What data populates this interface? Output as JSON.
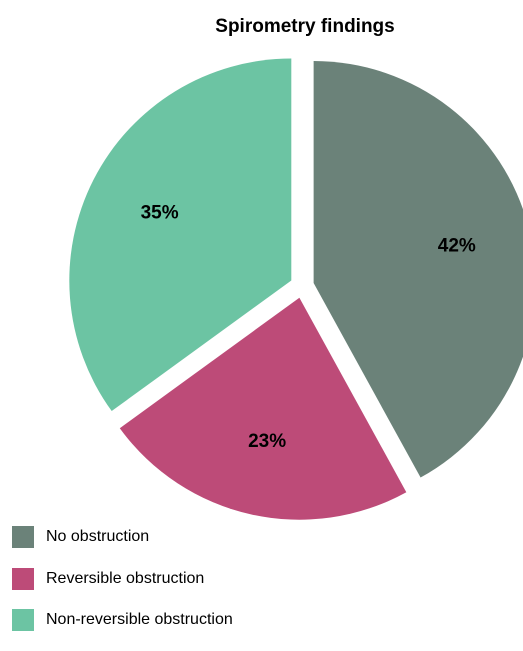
{
  "chart_data": {
    "type": "pie",
    "title": "Spirometry findings",
    "categories": [
      "No obstruction",
      "Reversible obstruction",
      "Non-reversible obstruction"
    ],
    "values": [
      42,
      23,
      35
    ],
    "labels": [
      "42%",
      "23%",
      "35%"
    ],
    "colors": [
      "#6b8279",
      "#bd4b78",
      "#6cc4a3"
    ],
    "exploded": true,
    "legend_position": "bottom-left"
  }
}
